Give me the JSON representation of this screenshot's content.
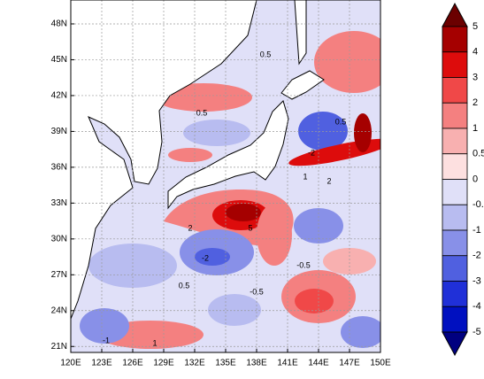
{
  "map": {
    "lon_range": [
      120,
      150
    ],
    "lat_range": [
      20.5,
      50
    ],
    "lon_ticks": [
      {
        "value": 120,
        "label": "120E"
      },
      {
        "value": 123,
        "label": "123E"
      },
      {
        "value": 126,
        "label": "126E"
      },
      {
        "value": 129,
        "label": "129E"
      },
      {
        "value": 132,
        "label": "132E"
      },
      {
        "value": 135,
        "label": "135E"
      },
      {
        "value": 138,
        "label": "138E"
      },
      {
        "value": 141,
        "label": "141E"
      },
      {
        "value": 144,
        "label": "144E"
      },
      {
        "value": 147,
        "label": "147E"
      },
      {
        "value": 150,
        "label": "150E"
      }
    ],
    "lat_ticks": [
      {
        "value": 21,
        "label": "21N"
      },
      {
        "value": 24,
        "label": "24N"
      },
      {
        "value": 27,
        "label": "27N"
      },
      {
        "value": 30,
        "label": "30N"
      },
      {
        "value": 33,
        "label": "33N"
      },
      {
        "value": 36,
        "label": "36N"
      },
      {
        "value": 39,
        "label": "39N"
      },
      {
        "value": 42,
        "label": "42N"
      },
      {
        "value": 45,
        "label": "45N"
      },
      {
        "value": 48,
        "label": "48N"
      }
    ],
    "colorbar": {
      "levels": [
        5,
        4,
        3,
        2,
        1,
        0.5,
        0,
        -0.5,
        -1,
        -2,
        -3,
        -4,
        -5
      ],
      "colors": [
        "#6b0000",
        "#a50000",
        "#dd0c0c",
        "#f04848",
        "#f48080",
        "#f8b0b0",
        "#fde0e0",
        "#e0e0f8",
        "#b8bcf0",
        "#8890e8",
        "#5060e0",
        "#2030d8",
        "#0010c0",
        "#000080"
      ]
    },
    "contour_labels": [
      0.5,
      0.5,
      -2,
      1,
      2,
      5,
      -0.5,
      -1,
      0.5,
      1,
      -0.5,
      2,
      -2,
      0.5
    ]
  }
}
